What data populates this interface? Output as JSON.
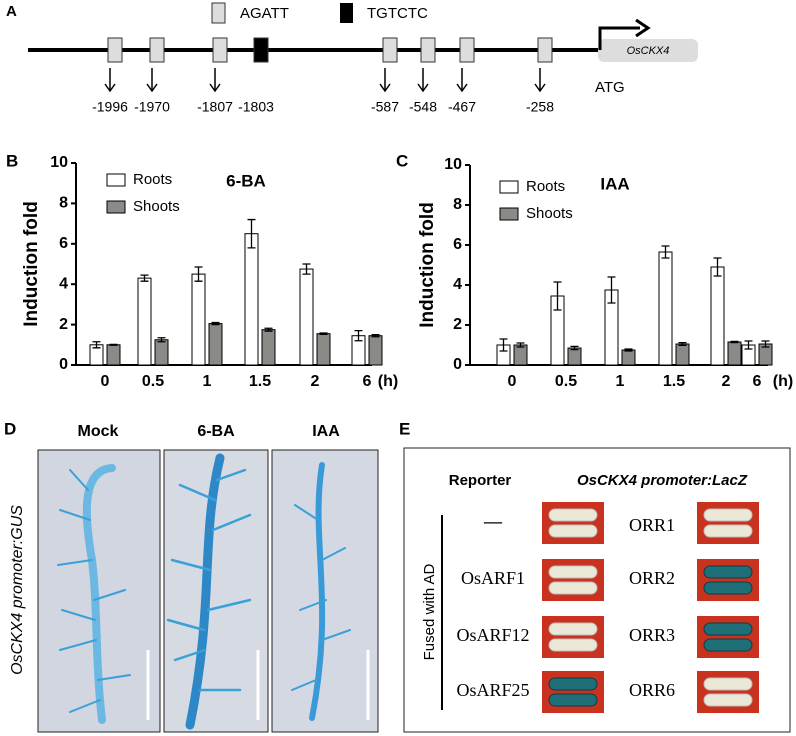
{
  "panel_labels": [
    "A",
    "B",
    "C",
    "D",
    "E"
  ],
  "promoter": {
    "legend": [
      "AGATT",
      "TGTCTC"
    ],
    "sites": [
      "-1996",
      "-1970",
      "-1807",
      "-1803",
      "-587",
      "-548",
      "-467",
      "-258"
    ],
    "gene": "OsCKX4",
    "start": "ATG"
  },
  "chart_data": [
    {
      "type": "bar",
      "title": "6-BA",
      "ylabel": "Induction fold",
      "xlabel": "(h)",
      "categories": [
        "0",
        "0.5",
        "1",
        "1.5",
        "2",
        "6"
      ],
      "series": [
        {
          "name": "Roots",
          "color": "#ffffff",
          "values": [
            1.0,
            4.3,
            4.5,
            6.5,
            4.75,
            1.45
          ],
          "errors": [
            0.15,
            0.15,
            0.35,
            0.7,
            0.25,
            0.25
          ]
        },
        {
          "name": "Shoots",
          "color": "#8a8a86",
          "values": [
            1.0,
            1.25,
            2.05,
            1.75,
            1.55,
            1.45
          ],
          "errors": [
            0.02,
            0.1,
            0.05,
            0.07,
            0.03,
            0.05
          ]
        }
      ],
      "ylim": [
        0,
        10
      ],
      "yticks": [
        0,
        2,
        4,
        6,
        8,
        10
      ]
    },
    {
      "type": "bar",
      "title": "IAA",
      "ylabel": "Induction fold",
      "xlabel": "(h)",
      "categories": [
        "0",
        "0.5",
        "1",
        "1.5",
        "2",
        "6"
      ],
      "series": [
        {
          "name": "Roots",
          "color": "#ffffff",
          "values": [
            1.0,
            3.45,
            3.75,
            5.65,
            4.9,
            1.0
          ],
          "errors": [
            0.3,
            0.7,
            0.65,
            0.3,
            0.45,
            0.2
          ]
        },
        {
          "name": "Shoots",
          "color": "#8a8a86",
          "values": [
            1.0,
            0.85,
            0.75,
            1.05,
            1.15,
            1.05
          ],
          "errors": [
            0.1,
            0.08,
            0.05,
            0.07,
            0.03,
            0.15
          ]
        }
      ],
      "ylim": [
        0,
        10
      ],
      "yticks": [
        0,
        2,
        4,
        6,
        8,
        10
      ]
    }
  ],
  "gus": {
    "columns": [
      "Mock",
      "6-BA",
      "IAA"
    ],
    "ylabel": "OsCKX4 promoter:GUS"
  },
  "y1h": {
    "header": [
      "Reporter",
      "OsCKX4 promoter:LacZ"
    ],
    "side": "Fused with AD",
    "left": [
      "—",
      "OsARF1",
      "OsARF12",
      "OsARF25"
    ],
    "right": [
      "ORR1",
      "ORR2",
      "ORR3",
      "ORR6"
    ]
  }
}
